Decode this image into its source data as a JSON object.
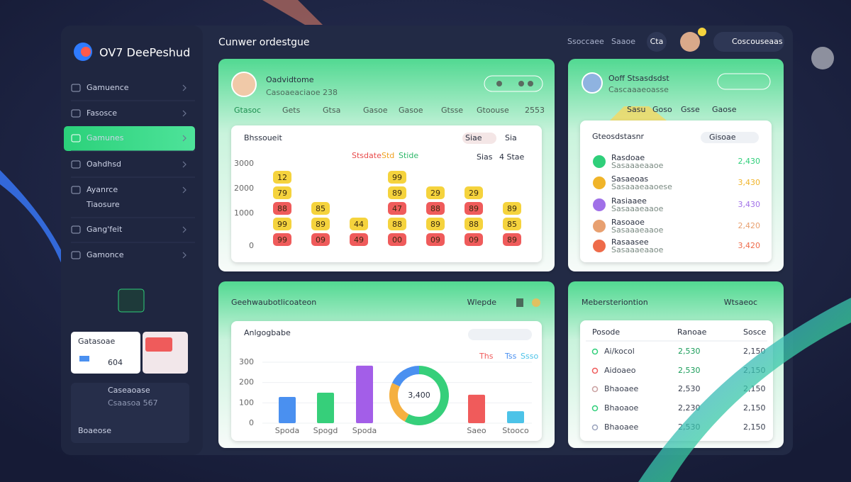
{
  "sidebar": {
    "logo": "OV7 DeePeshud",
    "nav": [
      "Gamuence",
      "Fasosce",
      "Gamunes",
      "Oahdhsd",
      "Ayanrce",
      "Tiaosure",
      "Gang'feit",
      "Gamonce"
    ],
    "promo": {
      "card_title": "Gatasoae",
      "card_value": "604",
      "box_title": "Caseaoase",
      "box_sub": "Csaasoa 567",
      "box_foot": "Boaeose"
    }
  },
  "header": {
    "title": "Cunwer ordestgue",
    "links": [
      "Ssoccaee",
      "Saaoe"
    ],
    "badge": "Cta",
    "account": "Coscouseaas"
  },
  "profile_card": {
    "name": "Oadvidtome",
    "sub": "Casoaeaciaoe 238",
    "tabs": [
      "Gtasoc",
      "Gets",
      "Gtsa",
      "Gasoe",
      "Gasoe",
      "Gtsse",
      "Gtoouse",
      "2553"
    ],
    "chart": {
      "title": "Bhssoueit",
      "filters": [
        "Siae",
        "Sia",
        "Sias",
        "4 Stae"
      ],
      "legend": [
        "Stsdate",
        "Std",
        "Stide"
      ],
      "axis_labels": [
        "3000",
        "2000",
        "1000",
        "0"
      ],
      "columns": [
        [
          {
            "label": "12",
            "color": "#f5d33d"
          },
          {
            "label": "79",
            "color": "#f5d33d"
          },
          {
            "label": "88",
            "color": "#ef5b5b"
          },
          {
            "label": "99",
            "color": "#f5d33d"
          },
          {
            "label": "99",
            "color": "#ef5b5b"
          }
        ],
        [
          {
            "label": "85",
            "color": "#f5d33d"
          },
          {
            "label": "89",
            "color": "#f5d33d"
          },
          {
            "label": "09",
            "color": "#ef5b5b"
          }
        ],
        [
          {
            "label": "44",
            "color": "#f5d33d"
          },
          {
            "label": "49",
            "color": "#ef5b5b"
          }
        ],
        [
          {
            "label": "99",
            "color": "#f5d33d"
          },
          {
            "label": "89",
            "color": "#f5d33d"
          },
          {
            "label": "47",
            "color": "#ef5b5b"
          },
          {
            "label": "88",
            "color": "#f5d33d"
          },
          {
            "label": "00",
            "color": "#ef5b5b"
          }
        ],
        [
          {
            "label": "29",
            "color": "#f5d33d"
          },
          {
            "label": "88",
            "color": "#ef5b5b"
          },
          {
            "label": "89",
            "color": "#f5d33d"
          },
          {
            "label": "09",
            "color": "#ef5b5b"
          }
        ],
        [
          {
            "label": "29",
            "color": "#f5d33d"
          },
          {
            "label": "89",
            "color": "#ef5b5b"
          },
          {
            "label": "88",
            "color": "#f5d33d"
          },
          {
            "label": "09",
            "color": "#ef5b5b"
          }
        ],
        [
          {
            "label": "89",
            "color": "#f5d33d"
          },
          {
            "label": "85",
            "color": "#f5d33d"
          },
          {
            "label": "89",
            "color": "#ef5b5b"
          }
        ]
      ]
    }
  },
  "ranking_card": {
    "name": "Ooff Stsasdsdst",
    "sub": "Cascaaaeoasse",
    "tabs": [
      "Sasu",
      "Goso",
      "Gsse",
      "Gaose"
    ],
    "list_title": "Gteosdstasnr",
    "filter": "Gisoae",
    "items": [
      {
        "name": "Rasdoae",
        "sub": "Sasaaaeaaoe",
        "value": "2,430",
        "color": "#2fcf7a"
      },
      {
        "name": "Sasaeoas",
        "sub": "Sasaaaeaaoese",
        "value": "3,430",
        "color": "#f0b429"
      },
      {
        "name": "Rasiaaee",
        "sub": "Sasaaaeaaoe",
        "value": "3,430",
        "color": "#a070e8"
      },
      {
        "name": "Rasoaoe",
        "sub": "Sasaaaeaaoe",
        "value": "2,420",
        "color": "#e8a070"
      },
      {
        "name": "Rasaasee",
        "sub": "Sasaaaeaaoe",
        "value": "3,420",
        "color": "#ee6b4a"
      }
    ]
  },
  "stats_card": {
    "title": "Geehwaubotlicoateon",
    "action": "Wlepde",
    "chart": {
      "title": "Anlgogbabe",
      "legend": [
        "Ths",
        "Tss",
        "Ssso"
      ],
      "ylim": [
        0,
        300
      ],
      "yticks": [
        0,
        100,
        200,
        300
      ],
      "categories": [
        "Spoda",
        "Spogd",
        "Spoda",
        "Saeo",
        "Stooco"
      ],
      "values": [
        129,
        150,
        283,
        140,
        59
      ],
      "colors": [
        "#4a90f0",
        "#36cf7a",
        "#a35ee8",
        "#f05b5b",
        "#4cc3e8"
      ],
      "donut": {
        "label": "3,400",
        "values": [
          58,
          24,
          18
        ],
        "colors": [
          "#36cf7a",
          "#f5b040",
          "#4a90f0"
        ]
      }
    }
  },
  "members_card": {
    "title": "Mebersteriontion",
    "action": "Wtsaeoc",
    "columns": [
      "Posode",
      "Ranoae",
      "Sosce"
    ],
    "rows": [
      [
        "Ai/kocol",
        "2,530",
        "2,150"
      ],
      [
        "Aidoaeo",
        "2,530",
        "2,150"
      ],
      [
        "Bhaoaee",
        "2,530",
        "2,150"
      ],
      [
        "Bhaoaoe",
        "2,230",
        "2,150"
      ],
      [
        "Bhaoaee",
        "2,530",
        "2,150"
      ]
    ]
  }
}
